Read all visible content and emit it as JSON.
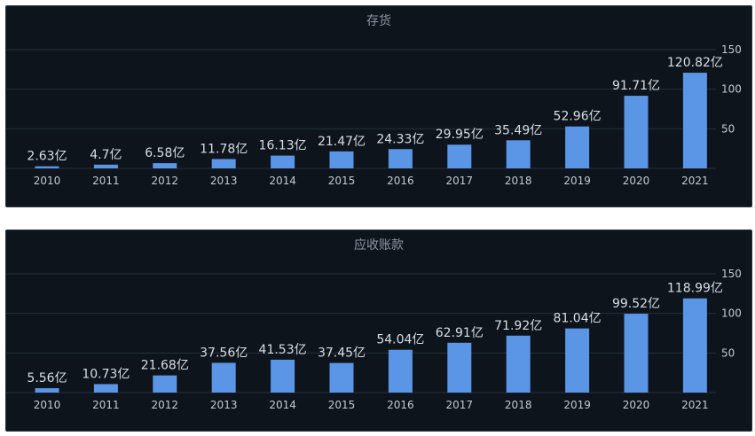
{
  "colors": {
    "background": "#0d141c",
    "bar": "#5b95e6",
    "grid": "#26303b"
  },
  "chart_data": [
    {
      "type": "bar",
      "title": "存货",
      "unit_suffix": "亿",
      "categories": [
        "2010",
        "2011",
        "2012",
        "2013",
        "2014",
        "2015",
        "2016",
        "2017",
        "2018",
        "2019",
        "2020",
        "2021"
      ],
      "values": [
        2.63,
        4.7,
        6.58,
        11.78,
        16.13,
        21.47,
        24.33,
        29.95,
        35.49,
        52.96,
        91.71,
        120.82
      ],
      "value_labels": [
        "2.63亿",
        "4.7亿",
        "6.58亿",
        "11.78亿",
        "16.13亿",
        "21.47亿",
        "24.33亿",
        "29.95亿",
        "35.49亿",
        "52.96亿",
        "91.71亿",
        "120.82亿"
      ],
      "yticks": [
        50,
        100,
        150
      ],
      "ylim": [
        0,
        150
      ],
      "y_axis_side": "right",
      "grid": true
    },
    {
      "type": "bar",
      "title": "应收账款",
      "unit_suffix": "亿",
      "categories": [
        "2010",
        "2011",
        "2012",
        "2013",
        "2014",
        "2015",
        "2016",
        "2017",
        "2018",
        "2019",
        "2020",
        "2021"
      ],
      "values": [
        5.56,
        10.73,
        21.68,
        37.56,
        41.53,
        37.45,
        54.04,
        62.91,
        71.92,
        81.04,
        99.52,
        118.99
      ],
      "value_labels": [
        "5.56亿",
        "10.73亿",
        "21.68亿",
        "37.56亿",
        "41.53亿",
        "37.45亿",
        "54.04亿",
        "62.91亿",
        "71.92亿",
        "81.04亿",
        "99.52亿",
        "118.99亿"
      ],
      "yticks": [
        50,
        100,
        150
      ],
      "ylim": [
        0,
        150
      ],
      "y_axis_side": "right",
      "grid": true
    }
  ]
}
